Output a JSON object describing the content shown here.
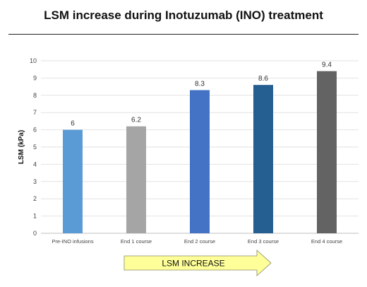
{
  "chart_data": {
    "type": "bar",
    "title": "LSM increase during Inotuzumab (INO) treatment",
    "xlabel": "",
    "ylabel": "LSM (kPa)",
    "ylim": [
      0,
      10
    ],
    "yticks": [
      0,
      1,
      2,
      3,
      4,
      5,
      6,
      7,
      8,
      9,
      10
    ],
    "grid": true,
    "categories": [
      "Pre-INO infusions",
      "End 1 course",
      "End 2 course",
      "End 3 course",
      "End 4 course"
    ],
    "values": [
      6,
      6.2,
      8.3,
      8.6,
      9.4
    ],
    "data_labels": [
      "6",
      "6.2",
      "8.3",
      "8.6",
      "9.4"
    ],
    "bar_colors": [
      "#5B9BD5",
      "#A5A5A5",
      "#4472C4",
      "#255E91",
      "#636363"
    ],
    "annotation": "LSM INCREASE",
    "annotation_color": "#FFFF99"
  }
}
